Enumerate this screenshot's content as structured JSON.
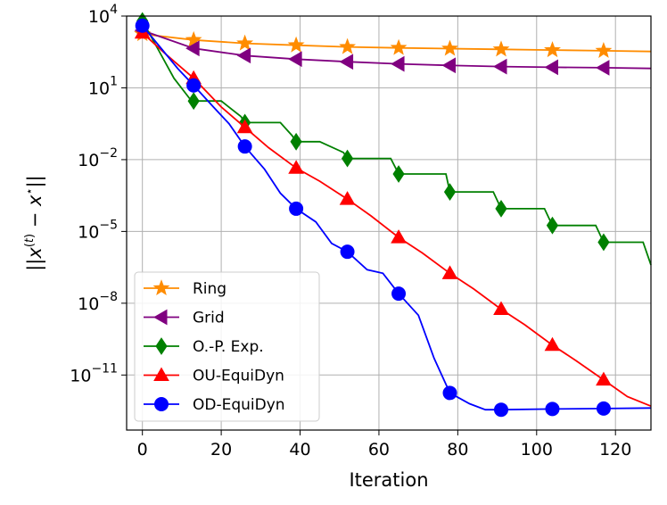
{
  "chart_data": {
    "type": "line",
    "xlabel": "Iteration",
    "ylabel": "||x^{(t)} − x*||",
    "xlim": [
      -4,
      129
    ],
    "ylim_log10": [
      -13.3,
      4.0
    ],
    "y_scale": "log",
    "grid": true,
    "legend_position": "lower-left",
    "x_ticks": [
      {
        "value": 0,
        "label": "0"
      },
      {
        "value": 20,
        "label": "20"
      },
      {
        "value": 40,
        "label": "40"
      },
      {
        "value": 60,
        "label": "60"
      },
      {
        "value": 80,
        "label": "80"
      },
      {
        "value": 100,
        "label": "100"
      },
      {
        "value": 120,
        "label": "120"
      }
    ],
    "y_ticks": [
      {
        "exp": 4,
        "base": "10",
        "power": "4"
      },
      {
        "exp": 1,
        "base": "10",
        "power": "1"
      },
      {
        "exp": -2,
        "base": "10",
        "power": "−2"
      },
      {
        "exp": -5,
        "base": "10",
        "power": "−5"
      },
      {
        "exp": -8,
        "base": "10",
        "power": "−8"
      },
      {
        "exp": -11,
        "base": "10",
        "power": "−11"
      }
    ],
    "series": [
      {
        "name": "Ring",
        "color": "#ff8c00",
        "marker": "star",
        "x": [
          0,
          13,
          26,
          39,
          52,
          65,
          78,
          91,
          104,
          117,
          129
        ],
        "log10_y": [
          3.25,
          3.0,
          2.86,
          2.78,
          2.71,
          2.67,
          2.64,
          2.61,
          2.58,
          2.55,
          2.52
        ]
      },
      {
        "name": "Grid",
        "color": "#800080",
        "marker": "triangle-left",
        "x": [
          0,
          13,
          26,
          39,
          52,
          65,
          78,
          91,
          104,
          117,
          129
        ],
        "log10_y": [
          3.4,
          2.65,
          2.35,
          2.2,
          2.09,
          2.0,
          1.94,
          1.89,
          1.86,
          1.84,
          1.81
        ]
      },
      {
        "name": "O.-P. Exp.",
        "color": "#008000",
        "marker": "diamond",
        "x": [
          0,
          4,
          8,
          12,
          13,
          16,
          20,
          25,
          26,
          30,
          35,
          38,
          39,
          45,
          51,
          52,
          58,
          63,
          65,
          71,
          77,
          78,
          84,
          89,
          91,
          97,
          102,
          104,
          110,
          115,
          117,
          122,
          127,
          129
        ],
        "log10_y": [
          3.8,
          2.6,
          1.4,
          0.55,
          0.45,
          0.45,
          0.45,
          -0.2,
          -0.45,
          -0.45,
          -0.45,
          -1.0,
          -1.25,
          -1.25,
          -1.7,
          -1.95,
          -1.95,
          -1.95,
          -2.6,
          -2.6,
          -2.6,
          -3.35,
          -3.35,
          -3.35,
          -4.05,
          -4.05,
          -4.05,
          -4.75,
          -4.75,
          -4.75,
          -5.45,
          -5.45,
          -5.45,
          -6.4
        ]
      },
      {
        "name": "OU-EquiDyn",
        "color": "#ff0000",
        "marker": "triangle-up",
        "x": [
          0,
          6,
          13,
          20,
          26,
          32,
          39,
          45,
          52,
          58,
          65,
          71,
          78,
          84,
          91,
          97,
          104,
          110,
          117,
          123,
          129
        ],
        "log10_y": [
          3.3,
          2.4,
          1.4,
          0.2,
          -0.65,
          -1.5,
          -2.35,
          -2.9,
          -3.65,
          -4.35,
          -5.25,
          -5.9,
          -6.75,
          -7.4,
          -8.25,
          -8.9,
          -9.75,
          -10.4,
          -11.2,
          -11.9,
          -12.3
        ]
      },
      {
        "name": "OD-EquiDyn",
        "color": "#0000ff",
        "marker": "circle",
        "x": [
          0,
          5,
          9,
          13,
          18,
          22,
          26,
          31,
          35,
          39,
          44,
          48,
          52,
          57,
          61,
          65,
          70,
          74,
          78,
          83,
          87,
          91,
          104,
          117,
          129
        ],
        "log10_y": [
          3.6,
          2.6,
          1.8,
          1.1,
          0.2,
          -0.5,
          -1.45,
          -2.4,
          -3.4,
          -4.05,
          -4.6,
          -5.5,
          -5.85,
          -6.6,
          -6.75,
          -7.6,
          -8.5,
          -10.3,
          -11.75,
          -12.2,
          -12.45,
          -12.45,
          -12.42,
          -12.4,
          -12.38
        ]
      }
    ]
  }
}
